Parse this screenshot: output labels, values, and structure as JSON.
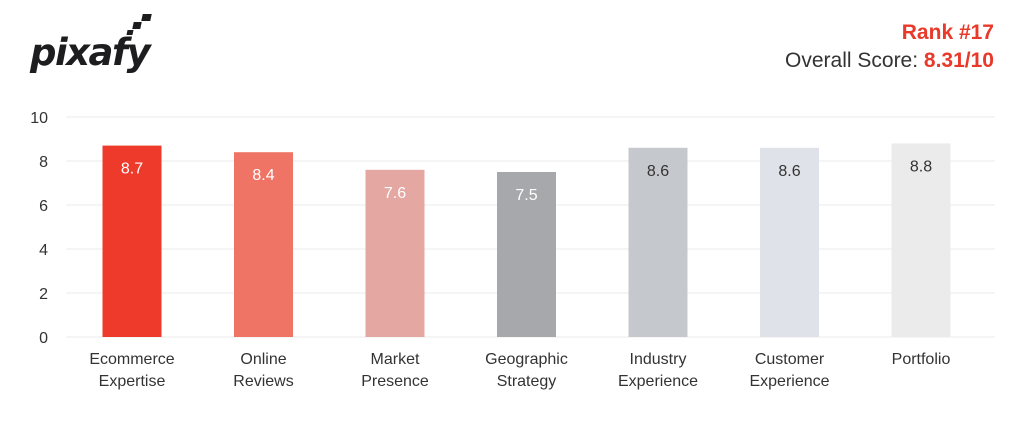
{
  "brand": {
    "name": "pixafy"
  },
  "header": {
    "rank_label": "Rank #17",
    "overall_label": "Overall Score: ",
    "overall_value": "8.31/10"
  },
  "colors": {
    "accent": "#e8392a",
    "text": "#333333",
    "grid": "#ebebeb"
  },
  "chart_data": {
    "type": "bar",
    "title": "",
    "xlabel": "",
    "ylabel": "",
    "ylim": [
      0,
      10
    ],
    "yticks": [
      0,
      2,
      4,
      6,
      8,
      10
    ],
    "grid": true,
    "categories": [
      [
        "Ecommerce",
        "Expertise"
      ],
      [
        "Online",
        "Reviews"
      ],
      [
        "Market",
        "Presence"
      ],
      [
        "Geographic",
        "Strategy"
      ],
      [
        "Industry",
        "Experience"
      ],
      [
        "Customer",
        "Experience"
      ],
      [
        "Portfolio"
      ]
    ],
    "values": [
      8.7,
      8.4,
      7.6,
      7.5,
      8.6,
      8.6,
      8.8
    ],
    "labels": [
      "8.7",
      "8.4",
      "7.6",
      "7.5",
      "8.6",
      "8.6",
      "8.8"
    ],
    "bar_colors": [
      "#ee3a2a",
      "#ef7466",
      "#e4a7a1",
      "#a7a8ab",
      "#c5c8cc",
      "#dfe2e8",
      "#ebebeb"
    ],
    "label_colors": [
      "#ffffff",
      "#ffffff",
      "#ffffff",
      "#ffffff",
      "#333333",
      "#333333",
      "#333333"
    ]
  }
}
